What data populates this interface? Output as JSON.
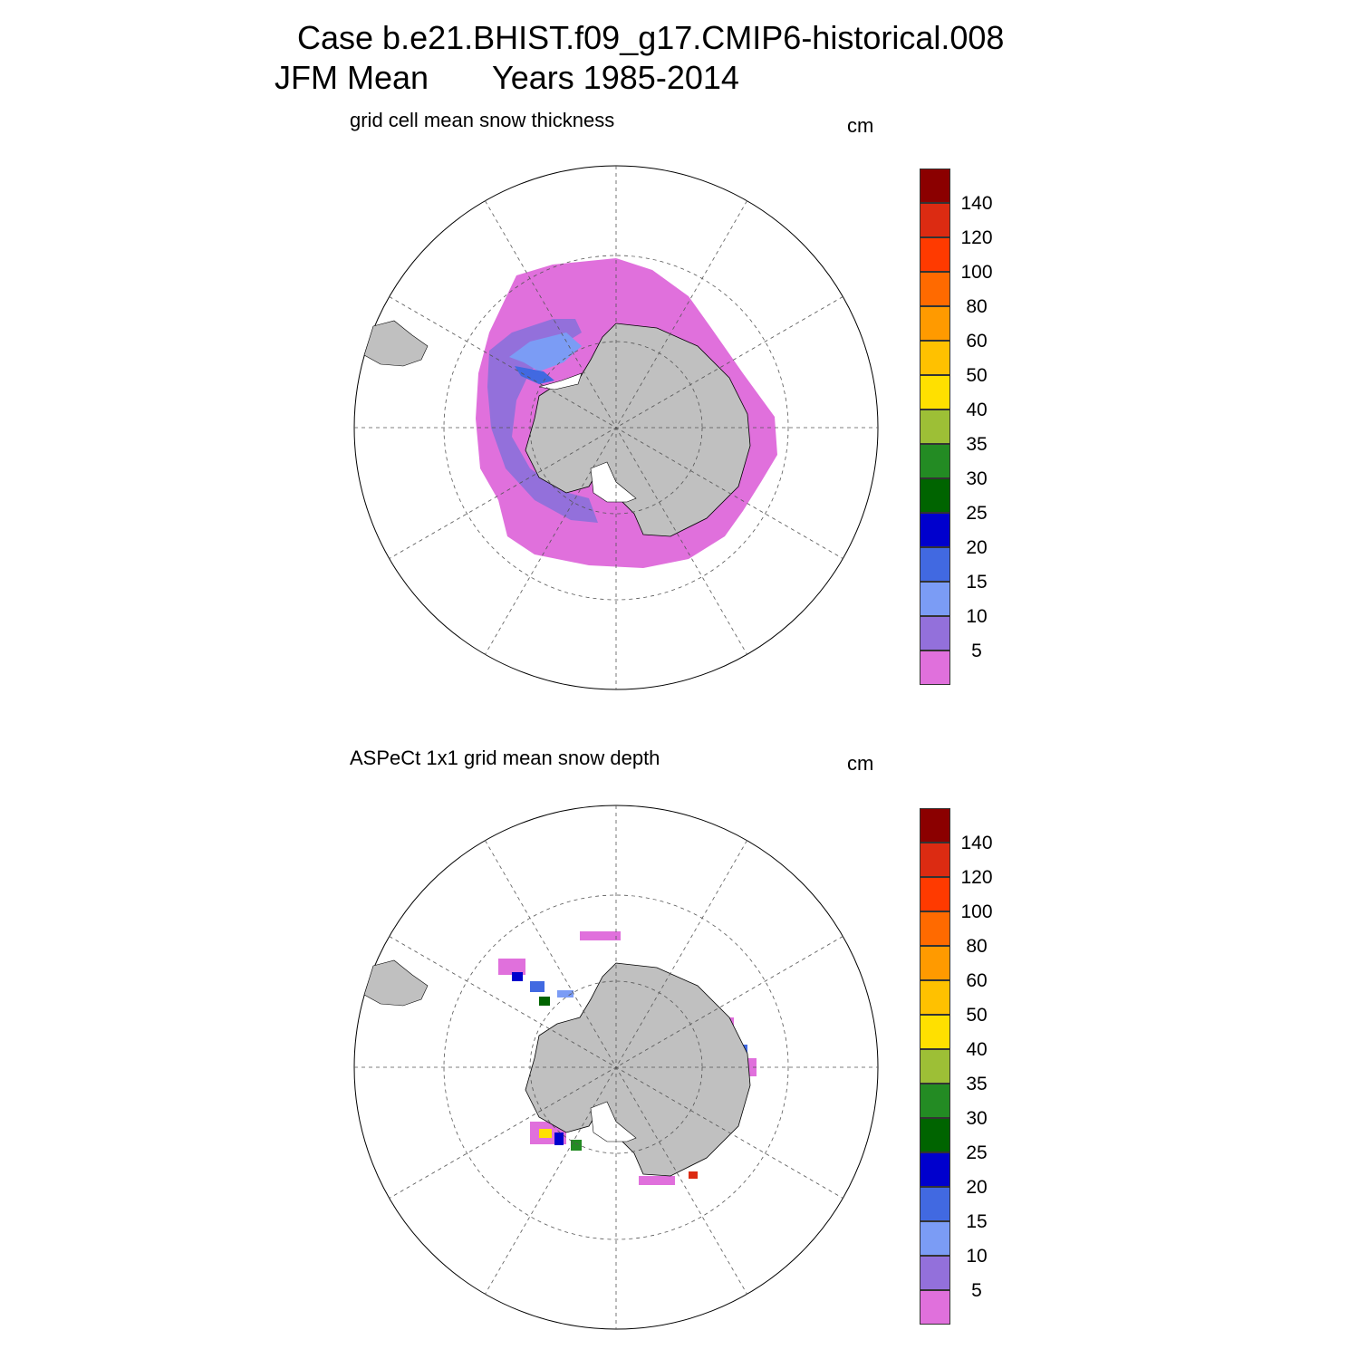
{
  "header": {
    "line1": "Case b.e21.BHIST.f09_g17.CMIP6-historical.008",
    "line2_season": "JFM Mean",
    "line2_years": "Years 1985-2014"
  },
  "panels": [
    {
      "title": "grid cell mean snow thickness",
      "unit": "cm",
      "field": "modeled sea-ice snow thickness (continuous ring)"
    },
    {
      "title": "ASPeCt 1x1 grid mean snow depth",
      "unit": "cm",
      "field": "observed snow depth (sparse ship-track cells)"
    }
  ],
  "colorbar": {
    "labels": [
      "140",
      "120",
      "100",
      "80",
      "60",
      "50",
      "40",
      "35",
      "30",
      "25",
      "20",
      "15",
      "10",
      "5"
    ],
    "colors": [
      "#8b0000",
      "#dc2b12",
      "#ff3a00",
      "#ff6a00",
      "#ff9a00",
      "#ffc100",
      "#ffe000",
      "#9dbf36",
      "#238b23",
      "#006400",
      "#0000cd",
      "#4169e1",
      "#7b9cf5",
      "#9370db",
      "#e070dc"
    ]
  },
  "map_style": {
    "land_color": "#c0c0c0",
    "ice_shelf_color": "#ffffff",
    "graticule_color": "#555555"
  }
}
